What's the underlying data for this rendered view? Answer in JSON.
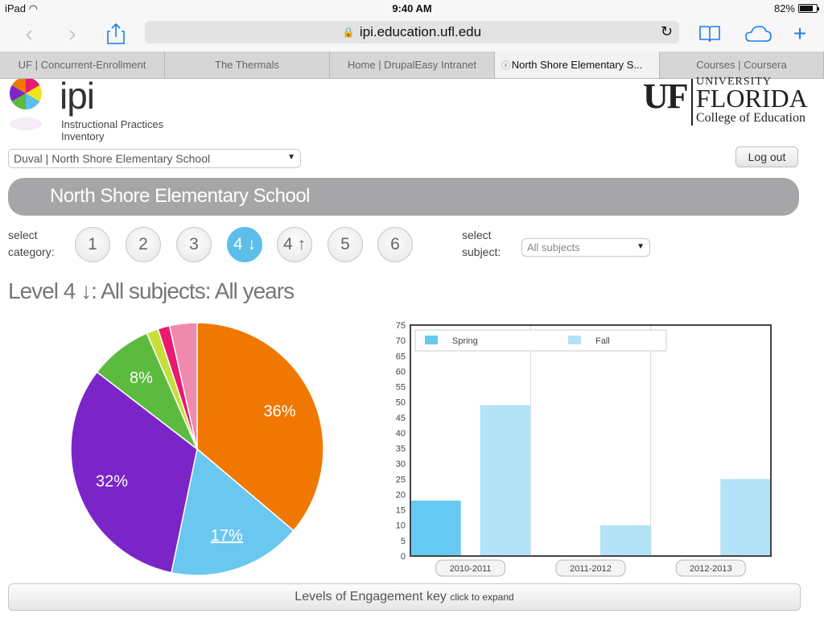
{
  "status_bar": {
    "device": "iPad",
    "time": "9:40 AM",
    "battery": "82%",
    "battery_level": 0.82
  },
  "toolbar": {
    "url": "ipi.education.ufl.edu",
    "icons": [
      "back-icon",
      "forward-icon",
      "share-icon",
      "reload-icon",
      "bookmarks-icon",
      "icloud-tabs-icon",
      "new-tab-icon"
    ]
  },
  "tabs": [
    {
      "label": "UF | Concurrent-Enrollment",
      "active": false
    },
    {
      "label": "The Thermals",
      "active": false
    },
    {
      "label": "Home | DrupalEasy Intranet",
      "active": false
    },
    {
      "label": "North Shore Elementary S...",
      "active": true
    },
    {
      "label": "Courses | Coursera",
      "active": false
    }
  ],
  "header": {
    "ipi_title": "ipi",
    "ipi_subtitle": "Instructional Practices Inventory",
    "uf_mark": "UF",
    "uf_university": "UNIVERSITY",
    "uf_florida": "FLORIDA",
    "uf_college": "College of Education"
  },
  "school_select": {
    "value": "Duval | North Shore Elementary School"
  },
  "logout_label": "Log out",
  "school_name": "North Shore Elementary School",
  "category": {
    "label_line1": "select",
    "label_line2": "category:",
    "options": [
      "1",
      "2",
      "3",
      "4 ↓",
      "4 ↑",
      "5",
      "6"
    ],
    "selected": "4 ↓"
  },
  "subject": {
    "label_line1": "select",
    "label_line2": "subject:",
    "value": "All subjects"
  },
  "level_heading": "Level 4 ↓: All subjects: All years",
  "chart_data": [
    {
      "type": "pie",
      "slices": [
        {
          "label": "36%",
          "value": 36,
          "color": "#f07800"
        },
        {
          "label": "17%",
          "value": 17,
          "color": "#6ac7f0"
        },
        {
          "label": "32%",
          "value": 32,
          "color": "#7b25c9"
        },
        {
          "label": "8%",
          "value": 8,
          "color": "#5cbb3f"
        },
        {
          "label": "",
          "value": 1.5,
          "color": "#c5e03a"
        },
        {
          "label": "",
          "value": 1.5,
          "color": "#e8196e"
        },
        {
          "label": "",
          "value": 3.5,
          "color": "#f08aac"
        }
      ]
    },
    {
      "type": "bar",
      "categories": [
        "2010-2011",
        "2011-2012",
        "2012-2013"
      ],
      "series": [
        {
          "name": "Spring",
          "values": [
            18,
            0,
            0
          ],
          "color": "#66c9f2"
        },
        {
          "name": "Fall",
          "values": [
            49,
            10,
            25
          ],
          "color": "#b3e3f7"
        }
      ],
      "ylim": [
        0,
        75
      ],
      "yticks": [
        "0",
        "5",
        "10",
        "15",
        "20",
        "25",
        "30",
        "35",
        "40",
        "45",
        "50",
        "55",
        "60",
        "65",
        "70",
        "75"
      ],
      "legend": "top-left"
    }
  ],
  "engagement_key": {
    "label": "Levels of Engagement key",
    "hint": "click to expand"
  }
}
